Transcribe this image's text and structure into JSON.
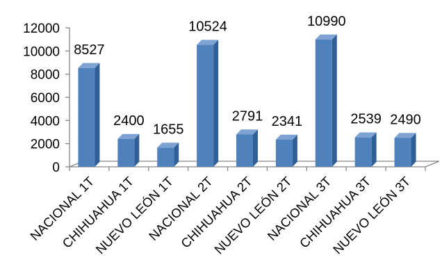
{
  "chart_data": {
    "type": "bar",
    "categories": [
      "NACIONAL 1T",
      "CHIHUAHUA 1T",
      "NUEVO LEÓN 1T",
      "NACIONAL 2T",
      "CHIHUAHUA 2T",
      "NUEVO LEÓN 2T",
      "NACIONAL 3T",
      "CHIHUAHUA 3T",
      "NUEVO LEÓN 3T"
    ],
    "values": [
      8527,
      2400,
      1655,
      10524,
      2791,
      2341,
      10990,
      2539,
      2490
    ],
    "data_labels": [
      "8527",
      "2400",
      "1655",
      "10524",
      "2791",
      "2341",
      "10990",
      "2539",
      "2490"
    ],
    "yticks": [
      "0",
      "2000",
      "4000",
      "6000",
      "8000",
      "10000",
      "12000"
    ],
    "ylim": [
      0,
      12000
    ],
    "style": "3d-column",
    "grid": false,
    "legend": "none",
    "bar_color": "#4f81bd",
    "bar_side_color": "#2f5f96",
    "bar_top_color": "#7ea3d3",
    "axis_color": "#868686"
  }
}
